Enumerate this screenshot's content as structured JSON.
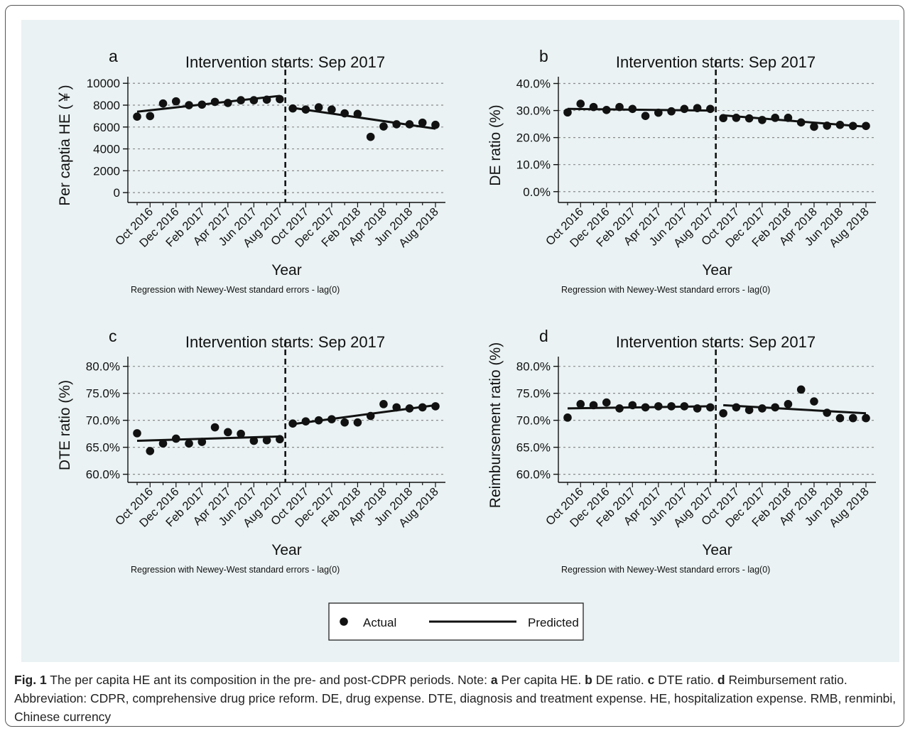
{
  "chart_data": [
    {
      "type": "scatter",
      "panel_letter": "a",
      "title": "Intervention starts: Sep 2017",
      "xlabel": "Year",
      "ylabel": "Per captia HE (￥)",
      "note": "Regression with Newey-West standard errors - lag(0)",
      "y_ticks": [
        "0",
        "2000",
        "4000",
        "6000",
        "8000",
        "10000"
      ],
      "y_tick_values": [
        0,
        2000,
        4000,
        6000,
        8000,
        10000
      ],
      "ylim": [
        -900,
        10600
      ],
      "percent": false,
      "x_tick_labels": [
        "Oct 2016",
        "Dec 2016",
        "Feb 2017",
        "Apr 2017",
        "Jun 2017",
        "Aug 2017",
        "Oct 2017",
        "Dec 2017",
        "Feb 2018",
        "Apr 2018",
        "Jun 2018",
        "Aug 2018"
      ],
      "x_months": [
        "Sep 2016",
        "Oct 2016",
        "Nov 2016",
        "Dec 2016",
        "Jan 2017",
        "Feb 2017",
        "Mar 2017",
        "Apr 2017",
        "May 2017",
        "Jun 2017",
        "Jul 2017",
        "Aug 2017",
        "Sep 2017",
        "Oct 2017",
        "Nov 2017",
        "Dec 2017",
        "Jan 2018",
        "Feb 2018",
        "Mar 2018",
        "Apr 2018",
        "May 2018",
        "Jun 2018",
        "Jul 2018",
        "Aug 2018"
      ],
      "intervention": "Sep 2017",
      "series": [
        {
          "name": "Actual",
          "values": [
            6950,
            7000,
            8150,
            8350,
            8000,
            8050,
            8300,
            8200,
            8450,
            8450,
            8500,
            8550,
            7700,
            7600,
            7800,
            7600,
            7250,
            7200,
            5100,
            6050,
            6250,
            6250,
            6400,
            6200
          ]
        },
        {
          "name": "Predicted",
          "segments": [
            {
              "from": "Sep 2016",
              "to": "Aug 2017",
              "values": [
                7400,
                8850
              ]
            },
            {
              "from": "Sep 2017",
              "to": "Aug 2018",
              "values": [
                7750,
                5850
              ]
            }
          ]
        }
      ],
      "grid": true
    },
    {
      "type": "scatter",
      "panel_letter": "b",
      "title": "Intervention starts: Sep 2017",
      "xlabel": "Year",
      "ylabel": "DE ratio (%)",
      "note": "Regression with Newey-West standard errors - lag(0)",
      "y_ticks": [
        "0.0%",
        "10.0%",
        "20.0%",
        "30.0%",
        "40.0%"
      ],
      "y_tick_values": [
        0,
        10,
        20,
        30,
        40
      ],
      "ylim": [
        -4,
        42.5
      ],
      "percent": true,
      "x_tick_labels": [
        "Oct 2016",
        "Dec 2016",
        "Feb 2017",
        "Apr 2017",
        "Jun 2017",
        "Aug 2017",
        "Oct 2017",
        "Dec 2017",
        "Feb 2018",
        "Apr 2018",
        "Jun 2018",
        "Aug 2018"
      ],
      "x_months": [
        "Sep 2016",
        "Oct 2016",
        "Nov 2016",
        "Dec 2016",
        "Jan 2017",
        "Feb 2017",
        "Mar 2017",
        "Apr 2017",
        "May 2017",
        "Jun 2017",
        "Jul 2017",
        "Aug 2017",
        "Sep 2017",
        "Oct 2017",
        "Nov 2017",
        "Dec 2017",
        "Jan 2018",
        "Feb 2018",
        "Mar 2018",
        "Apr 2018",
        "May 2018",
        "Jun 2018",
        "Jul 2018",
        "Aug 2018"
      ],
      "intervention": "Sep 2017",
      "series": [
        {
          "name": "Actual",
          "values": [
            29.3,
            32.5,
            31.3,
            30.2,
            31.3,
            30.6,
            28.0,
            29.2,
            29.7,
            30.6,
            30.9,
            30.6,
            27.2,
            27.3,
            27.1,
            26.5,
            27.3,
            27.3,
            25.6,
            24.0,
            24.4,
            24.7,
            24.3,
            24.3
          ]
        },
        {
          "name": "Predicted",
          "segments": [
            {
              "from": "Sep 2016",
              "to": "Aug 2017",
              "values": [
                30.6,
                30.0
              ]
            },
            {
              "from": "Sep 2017",
              "to": "Aug 2018",
              "values": [
                28.2,
                24.0
              ]
            }
          ]
        }
      ],
      "grid": true
    },
    {
      "type": "scatter",
      "panel_letter": "c",
      "title": "Intervention starts: Sep 2017",
      "xlabel": "Year",
      "ylabel": "DTE ratio (%)",
      "note": "Regression with Newey-West standard errors - lag(0)",
      "y_ticks": [
        "60.0%",
        "65.0%",
        "70.0%",
        "75.0%",
        "80.0%"
      ],
      "y_tick_values": [
        60,
        65,
        70,
        75,
        80
      ],
      "ylim": [
        58.5,
        81.8
      ],
      "percent": true,
      "x_tick_labels": [
        "Oct 2016",
        "Dec 2016",
        "Feb 2017",
        "Apr 2017",
        "Jun 2017",
        "Aug 2017",
        "Oct 2017",
        "Dec 2017",
        "Feb 2018",
        "Apr 2018",
        "Jun 2018",
        "Aug 2018"
      ],
      "x_months": [
        "Sep 2016",
        "Oct 2016",
        "Nov 2016",
        "Dec 2016",
        "Jan 2017",
        "Feb 2017",
        "Mar 2017",
        "Apr 2017",
        "May 2017",
        "Jun 2017",
        "Jul 2017",
        "Aug 2017",
        "Sep 2017",
        "Oct 2017",
        "Nov 2017",
        "Dec 2017",
        "Jan 2018",
        "Feb 2018",
        "Mar 2018",
        "Apr 2018",
        "May 2018",
        "Jun 2018",
        "Jul 2018",
        "Aug 2018"
      ],
      "intervention": "Sep 2017",
      "series": [
        {
          "name": "Actual",
          "values": [
            67.6,
            64.3,
            65.7,
            66.6,
            65.7,
            66.0,
            68.7,
            67.8,
            67.5,
            66.2,
            66.3,
            66.5,
            69.4,
            69.8,
            70.0,
            70.2,
            69.6,
            69.6,
            70.8,
            73.0,
            72.4,
            72.2,
            72.4,
            72.6
          ]
        },
        {
          "name": "Predicted",
          "segments": [
            {
              "from": "Sep 2016",
              "to": "Aug 2017",
              "values": [
                66.2,
                67.0
              ]
            },
            {
              "from": "Sep 2017",
              "to": "Aug 2018",
              "values": [
                69.3,
                72.8
              ]
            }
          ]
        }
      ],
      "grid": true
    },
    {
      "type": "scatter",
      "panel_letter": "d",
      "title": "Intervention starts: Sep 2017",
      "xlabel": "Year",
      "ylabel": "Reimbursement ratio (%)",
      "note": "Regression with Newey-West standard errors - lag(0)",
      "y_ticks": [
        "60.0%",
        "65.0%",
        "70.0%",
        "75.0%",
        "80.0%"
      ],
      "y_tick_values": [
        60,
        65,
        70,
        75,
        80
      ],
      "ylim": [
        58.5,
        81.8
      ],
      "percent": true,
      "x_tick_labels": [
        "Oct 2016",
        "Dec 2016",
        "Feb 2017",
        "Apr 2017",
        "Jun 2017",
        "Aug 2017",
        "Oct 2017",
        "Dec 2017",
        "Feb 2018",
        "Apr 2018",
        "Jun 2018",
        "Aug 2018"
      ],
      "x_months": [
        "Sep 2016",
        "Oct 2016",
        "Nov 2016",
        "Dec 2016",
        "Jan 2017",
        "Feb 2017",
        "Mar 2017",
        "Apr 2017",
        "May 2017",
        "Jun 2017",
        "Jul 2017",
        "Aug 2017",
        "Sep 2017",
        "Oct 2017",
        "Nov 2017",
        "Dec 2017",
        "Jan 2018",
        "Feb 2018",
        "Mar 2018",
        "Apr 2018",
        "May 2018",
        "Jun 2018",
        "Jul 2018",
        "Aug 2018"
      ],
      "intervention": "Sep 2017",
      "series": [
        {
          "name": "Actual",
          "values": [
            70.5,
            73.0,
            72.8,
            73.3,
            72.2,
            72.8,
            72.4,
            72.6,
            72.6,
            72.6,
            72.2,
            72.4,
            71.3,
            72.4,
            71.9,
            72.2,
            72.4,
            73.0,
            75.7,
            73.5,
            71.4,
            70.4,
            70.4,
            70.4
          ]
        },
        {
          "name": "Predicted",
          "segments": [
            {
              "from": "Sep 2016",
              "to": "Aug 2017",
              "values": [
                72.2,
                72.6
              ]
            },
            {
              "from": "Sep 2017",
              "to": "Aug 2018",
              "values": [
                72.8,
                71.3
              ]
            }
          ]
        }
      ],
      "grid": true
    }
  ],
  "legend": {
    "actual_label": "Actual",
    "predicted_label": "Predicted",
    "placement": "bottom-center"
  },
  "caption": {
    "fig_label": "Fig. 1",
    "text_intro": " The per capita HE ant its composition in the pre- and post-CDPR periods. Note: ",
    "a": "a",
    "a_text": " Per capita HE. ",
    "b": "b",
    "b_text": " DE ratio. ",
    "c": "c",
    "c_text": " DTE ratio. ",
    "d": "d",
    "d_text": " Reimbursement ratio. Abbreviation: CDPR, comprehensive drug price reform. DE, drug expense. DTE, diagnosis and treatment expense. HE, hospitalization expense. RMB, renminbi, Chinese currency"
  }
}
